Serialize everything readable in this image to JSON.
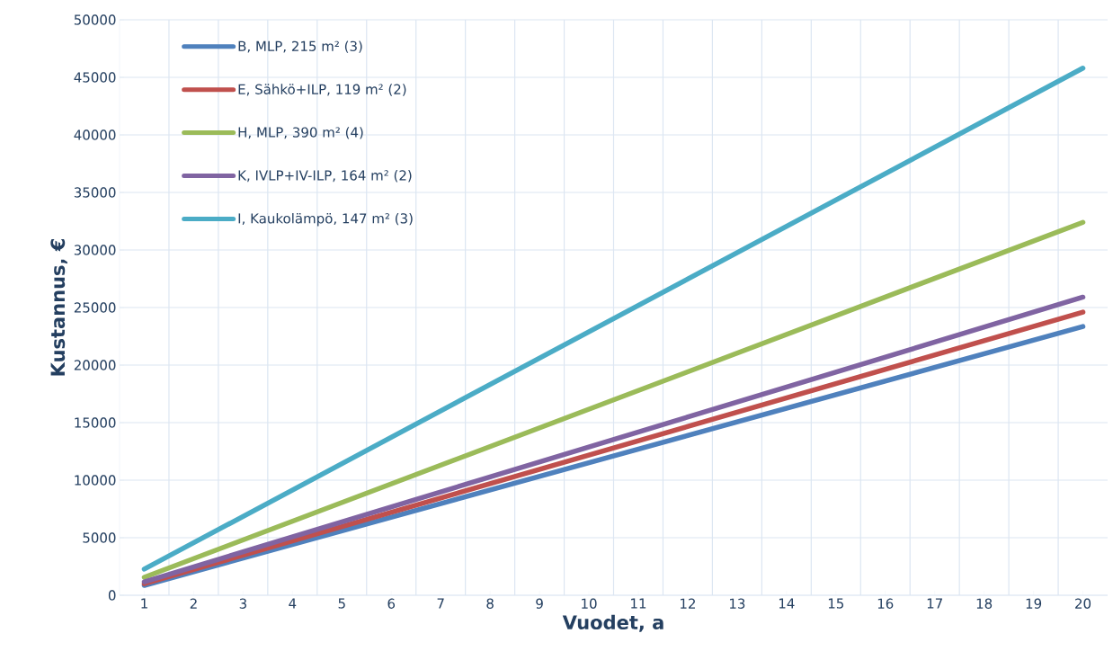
{
  "chart_data": {
    "type": "line",
    "xlabel": "Vuodet, a",
    "ylabel": "Kustannus, €",
    "x": [
      1,
      20
    ],
    "xlim": [
      0.5,
      20.5
    ],
    "xticks": [
      1,
      2,
      3,
      4,
      5,
      6,
      7,
      8,
      9,
      10,
      11,
      12,
      13,
      14,
      15,
      16,
      17,
      18,
      19,
      20
    ],
    "ylim": [
      0,
      50000
    ],
    "yticks": [
      0,
      5000,
      10000,
      15000,
      20000,
      25000,
      30000,
      35000,
      40000,
      45000,
      50000
    ],
    "grid": true,
    "legend": "top left",
    "marker": "none",
    "line_style": "solid",
    "series": [
      {
        "name": "B, MLP, 215 m² (3)",
        "color": "#4f81bd",
        "values": [
          860,
          23350
        ]
      },
      {
        "name": "E, Sähkö+ILP, 119 m² (2)",
        "color": "#c0504d",
        "values": [
          1000,
          24600
        ]
      },
      {
        "name": "H, MLP, 390 m² (4)",
        "color": "#9bbb59",
        "values": [
          1560,
          32400
        ]
      },
      {
        "name": "K, IVLP+IV-ILP, 164 m² (2)",
        "color": "#8064a2",
        "values": [
          1170,
          25900
        ]
      },
      {
        "name": "I, Kaukolämpö, 147 m² (3)",
        "color": "#4bacc6",
        "values": [
          2270,
          45800
        ]
      }
    ]
  }
}
